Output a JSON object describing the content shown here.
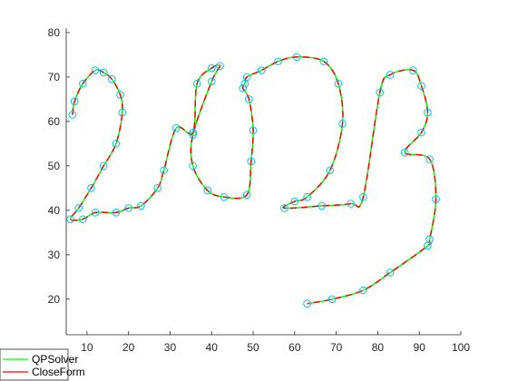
{
  "chart_data": {
    "type": "line",
    "title": "",
    "xlabel": "",
    "ylabel": "",
    "xlim": [
      5,
      100
    ],
    "ylim": [
      12,
      81
    ],
    "xticks": [
      10,
      20,
      30,
      40,
      50,
      60,
      70,
      80,
      90,
      100
    ],
    "yticks": [
      20,
      30,
      40,
      50,
      60,
      70,
      80
    ],
    "grid": false,
    "legend_position": "bottom-left",
    "colors": {
      "qp": "#00ff00",
      "closeform": "#ff0000",
      "point_edge": "#0000ff",
      "point_face": "#00bfff",
      "axis": "#262626"
    },
    "series": [
      {
        "name": "QPSolver",
        "x": [
          6.5,
          7,
          9,
          12,
          14,
          16,
          18,
          18.5,
          17,
          14,
          11,
          8,
          6,
          9,
          12,
          17,
          20,
          23,
          27,
          28.5,
          31.5,
          35.5,
          36.5,
          40,
          42,
          40,
          35.5,
          35.5,
          39,
          43,
          48.5,
          49.5,
          50,
          49,
          47.5,
          48,
          48.5,
          52,
          56,
          60.5,
          67,
          70.5,
          71.5,
          68.5,
          63,
          60,
          57.5,
          66.5,
          73.5,
          76.5,
          80.5,
          83,
          88.5,
          90.5,
          92,
          90.5,
          86.5,
          92.5,
          94,
          92.5,
          92,
          83,
          76.5,
          69,
          63
        ],
        "y": [
          61.5,
          64.5,
          68.5,
          71.5,
          71,
          69.5,
          66,
          62,
          55,
          50,
          45,
          40.5,
          38,
          38,
          39.5,
          39.5,
          40.5,
          41,
          45,
          49,
          58.5,
          57.5,
          68.5,
          72,
          72.5,
          69,
          57,
          50,
          44.5,
          43,
          43.5,
          51,
          58,
          65,
          67.5,
          68.5,
          70,
          71.5,
          73.5,
          74.5,
          73.5,
          68.5,
          59.5,
          49,
          43,
          42,
          40.5,
          41,
          41.5,
          43,
          66.5,
          70.5,
          71.5,
          68,
          62,
          57.5,
          53,
          51.5,
          42.5,
          33.5,
          32,
          26,
          22,
          20,
          19
        ]
      },
      {
        "name": "CloseForm",
        "x": [
          6.5,
          7,
          9,
          12,
          14,
          16,
          18,
          18.5,
          17,
          14,
          11,
          8,
          6,
          9,
          12,
          17,
          20,
          23,
          27,
          28.5,
          31.5,
          35.5,
          36.5,
          40,
          42,
          40,
          35.5,
          35.5,
          39,
          43,
          48.5,
          49.5,
          50,
          49,
          47.5,
          48,
          48.5,
          52,
          56,
          60.5,
          67,
          70.5,
          71.5,
          68.5,
          63,
          60,
          57.5,
          66.5,
          73.5,
          76.5,
          80.5,
          83,
          88.5,
          90.5,
          92,
          90.5,
          86.5,
          92.5,
          94,
          92.5,
          92,
          83,
          76.5,
          69,
          63
        ],
        "y": [
          61.5,
          64.5,
          68.5,
          71.5,
          71,
          69.5,
          66,
          62,
          55,
          50,
          45,
          40.5,
          38,
          38,
          39.5,
          39.5,
          40.5,
          41,
          45,
          49,
          58.5,
          57.5,
          68.5,
          72,
          72.5,
          69,
          57,
          50,
          44.5,
          43,
          43.5,
          51,
          58,
          65,
          67.5,
          68.5,
          70,
          71.5,
          73.5,
          74.5,
          73.5,
          68.5,
          59.5,
          49,
          43,
          42,
          40.5,
          41,
          41.5,
          43,
          66.5,
          70.5,
          71.5,
          68,
          62,
          57.5,
          53,
          51.5,
          42.5,
          33.5,
          32,
          26,
          22,
          20,
          19
        ]
      }
    ],
    "waypoints": {
      "x": [
        6.5,
        7,
        9,
        12,
        14,
        16,
        18,
        18.5,
        17,
        14,
        11,
        8,
        6,
        9,
        12,
        17,
        20,
        23,
        27,
        28.5,
        31.5,
        35.5,
        36.5,
        40,
        42,
        40,
        35.5,
        35.5,
        39,
        43,
        48.5,
        49.5,
        50,
        49,
        47.5,
        48,
        48.5,
        52,
        56,
        60.5,
        67,
        70.5,
        71.5,
        68.5,
        63,
        60,
        57.5,
        66.5,
        73.5,
        76.5,
        80.5,
        83,
        88.5,
        90.5,
        92,
        90.5,
        86.5,
        92.5,
        94,
        92.5,
        92,
        83,
        76.5,
        69,
        63
      ],
      "y": [
        61.5,
        64.5,
        68.5,
        71.5,
        71,
        69.5,
        66,
        62,
        55,
        50,
        45,
        40.5,
        38,
        38,
        39.5,
        39.5,
        40.5,
        41,
        45,
        49,
        58.5,
        57.5,
        68.5,
        72,
        72.5,
        69,
        57,
        50,
        44.5,
        43,
        43.5,
        51,
        58,
        65,
        67.5,
        68.5,
        70,
        71.5,
        73.5,
        74.5,
        73.5,
        68.5,
        59.5,
        49,
        43,
        42,
        40.5,
        41,
        41.5,
        43,
        66.5,
        70.5,
        71.5,
        68,
        62,
        57.5,
        53,
        51.5,
        42.5,
        33.5,
        32,
        26,
        22,
        20,
        19
      ]
    }
  }
}
